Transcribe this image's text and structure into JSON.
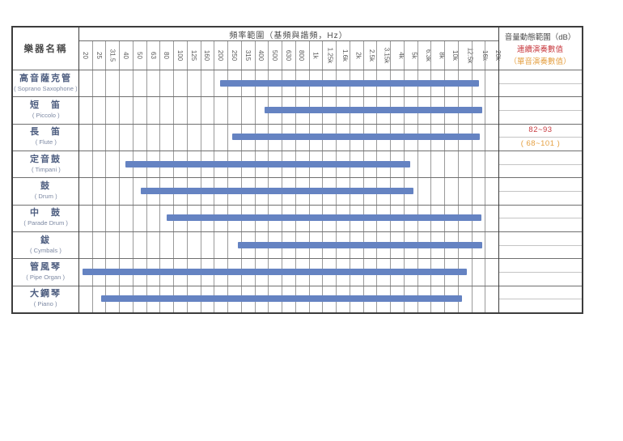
{
  "colors": {
    "bar": "#6583c2",
    "grid_light": "#9a9a9a",
    "grid_row": "#6f6f6f",
    "border_dark": "#3c3c3c",
    "red": "#c83b40",
    "orange": "#e5a042",
    "cn_text": "#4e5e80",
    "en_text": "#7d89a3"
  },
  "header": {
    "name_col": "樂器名稱",
    "freq_title": "頻率範圍（基頻與諧頻，Hz）",
    "db_title": "音量動態範圍（dB）",
    "db_sub_red": "連續演奏數值",
    "db_sub_orange": "（單音演奏數值）"
  },
  "chart_data": {
    "type": "bar",
    "orientation": "horizontal-range",
    "title": "頻率範圍（基頻與諧頻，Hz）",
    "x_axis_unit": "Hz",
    "x_ticks": [
      "20",
      "25",
      "31.5",
      "40",
      "50",
      "63",
      "80",
      "100",
      "125",
      "160",
      "200",
      "250",
      "315",
      "400",
      "500",
      "630",
      "800",
      "1k",
      "1.25k",
      "1.6k",
      "2k",
      "2.5k",
      "3.15k",
      "4k",
      "5k",
      "6.3k",
      "8k",
      "10k",
      "12.5k",
      "16k",
      "20k"
    ],
    "grid": true,
    "instruments": [
      {
        "cn": "高音薩克管",
        "en": "( Soprano Saxophone )",
        "start_hz": "200",
        "end_hz": "16k",
        "start_col": 9.95,
        "end_col": 29.05,
        "db_continuous": "",
        "db_single": ""
      },
      {
        "cn": "短　笛",
        "en": "( Piccolo )",
        "start_hz": "400",
        "end_hz": "16k",
        "start_col": 13.25,
        "end_col": 29.3,
        "db_continuous": "",
        "db_single": ""
      },
      {
        "cn": "長　笛",
        "en": "( Flute )",
        "start_hz": "250",
        "end_hz": "16k",
        "start_col": 10.85,
        "end_col": 29.1,
        "db_continuous": "82~93",
        "db_single": "( 68~101 )"
      },
      {
        "cn": "定音鼓",
        "en": "( Timpani )",
        "start_hz": "40",
        "end_hz": "5k",
        "start_col": 2.95,
        "end_col": 24.0,
        "db_continuous": "",
        "db_single": ""
      },
      {
        "cn": "鼓",
        "en": "( Drum )",
        "start_hz": "50",
        "end_hz": "5k",
        "start_col": 4.1,
        "end_col": 24.2,
        "db_continuous": "",
        "db_single": ""
      },
      {
        "cn": "中　鼓",
        "en": "( Parade Drum )",
        "start_hz": "80",
        "end_hz": "16k",
        "start_col": 6.0,
        "end_col": 29.25,
        "db_continuous": "",
        "db_single": ""
      },
      {
        "cn": "鈸",
        "en": "( Cymbals )",
        "start_hz": "250",
        "end_hz": "16k",
        "start_col": 11.25,
        "end_col": 29.3,
        "db_continuous": "",
        "db_single": ""
      },
      {
        "cn": "管風琴",
        "en": "( Pipe Organ )",
        "start_hz": "20",
        "end_hz": "12.5k",
        "start_col": -0.2,
        "end_col": 28.2,
        "db_continuous": "",
        "db_single": ""
      },
      {
        "cn": "大鋼琴",
        "en": "( Piano )",
        "start_hz": "25",
        "end_hz": "12.5k",
        "start_col": 1.15,
        "end_col": 27.8,
        "db_continuous": "",
        "db_single": ""
      }
    ]
  }
}
